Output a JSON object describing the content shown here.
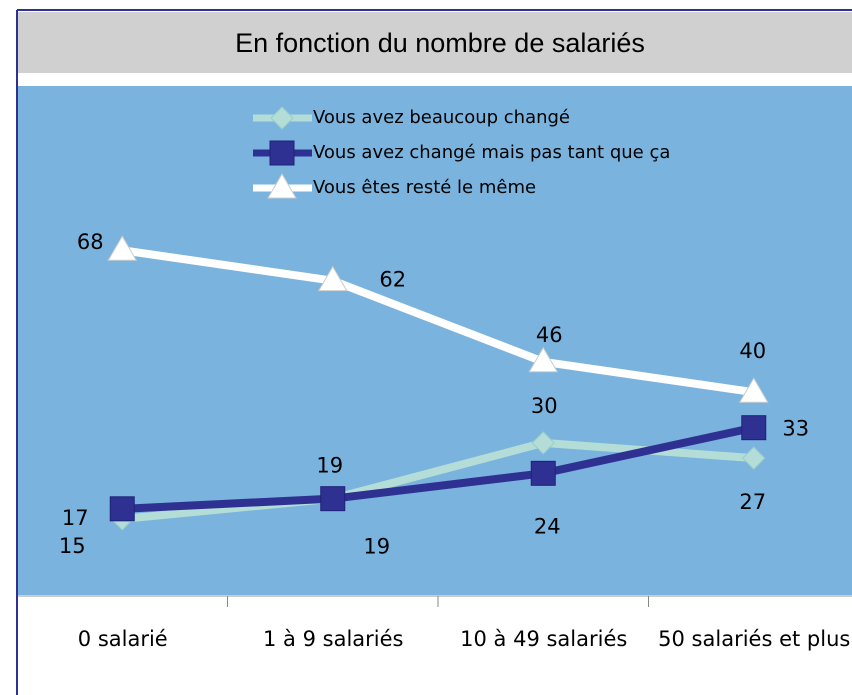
{
  "chart_data": {
    "type": "line",
    "title": "En fonction du nombre de salariés",
    "categories": [
      "0 salarié",
      "1 à 9 salariés",
      "10 à 49 salariés",
      "50 salariés et plus"
    ],
    "series": [
      {
        "name": "Vous avez beaucoup changé",
        "color": "#b3ddd6",
        "marker": "diamond",
        "values": [
          15,
          19,
          30,
          27
        ]
      },
      {
        "name": "Vous avez changé mais pas tant que ça",
        "color": "#2e3192",
        "marker": "square",
        "values": [
          17,
          19,
          24,
          33
        ]
      },
      {
        "name": "Vous êtes resté le même",
        "color": "#ffffff",
        "marker": "triangle",
        "values": [
          68,
          62,
          46,
          40
        ]
      }
    ],
    "ylim": [
      0,
      100
    ],
    "background": "#7ab3dd",
    "legend": "top"
  }
}
